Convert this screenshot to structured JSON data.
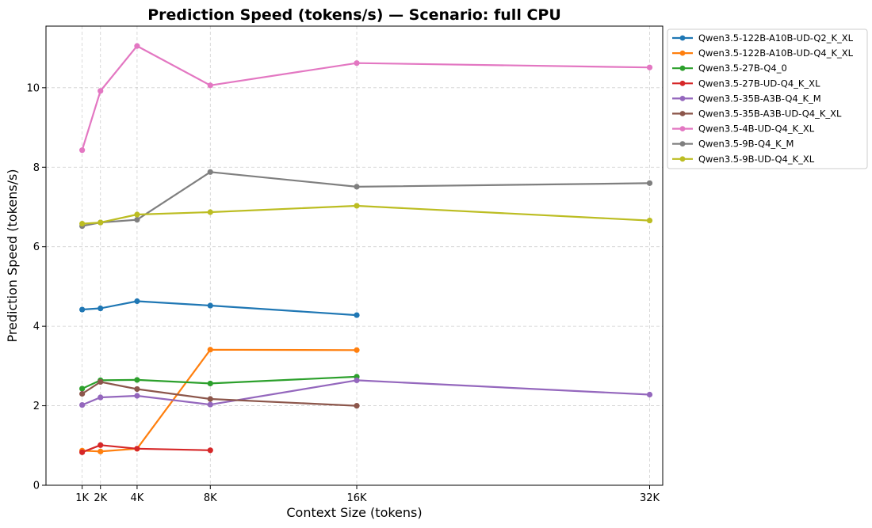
{
  "chart_data": {
    "type": "line",
    "title": "Prediction Speed (tokens/s) — Scenario: full CPU",
    "xlabel": "Context Size (tokens)",
    "ylabel": "Prediction Speed (tokens/s)",
    "xlim": [
      -1000,
      33500
    ],
    "ylim": [
      0,
      11.55
    ],
    "x_ticks": [
      {
        "value": 1024,
        "label": "1K"
      },
      {
        "value": 2048,
        "label": "2K"
      },
      {
        "value": 4096,
        "label": "4K"
      },
      {
        "value": 8192,
        "label": "8K"
      },
      {
        "value": 16384,
        "label": "16K"
      },
      {
        "value": 32768,
        "label": "32K"
      }
    ],
    "y_ticks": [
      {
        "value": 0,
        "label": "0"
      },
      {
        "value": 2,
        "label": "2"
      },
      {
        "value": 4,
        "label": "4"
      },
      {
        "value": 6,
        "label": "6"
      },
      {
        "value": 8,
        "label": "8"
      },
      {
        "value": 10,
        "label": "10"
      }
    ],
    "grid": true,
    "legend_position": "outside top-right",
    "series": [
      {
        "name": "Qwen3.5-122B-A10B-UD-Q2_K_XL",
        "color": "#1f77b4",
        "x": [
          1024,
          2048,
          4096,
          8192,
          16384
        ],
        "y": [
          4.42,
          4.45,
          4.63,
          4.52,
          4.28
        ]
      },
      {
        "name": "Qwen3.5-122B-A10B-UD-Q4_K_XL",
        "color": "#ff7f0e",
        "x": [
          1024,
          2048,
          4096,
          8192,
          16384
        ],
        "y": [
          0.87,
          0.85,
          0.92,
          3.41,
          3.4
        ]
      },
      {
        "name": "Qwen3.5-27B-Q4_0",
        "color": "#2ca02c",
        "x": [
          1024,
          2048,
          4096,
          8192,
          16384
        ],
        "y": [
          2.43,
          2.64,
          2.65,
          2.56,
          2.73
        ]
      },
      {
        "name": "Qwen3.5-27B-UD-Q4_K_XL",
        "color": "#d62728",
        "x": [
          1024,
          2048,
          4096,
          8192
        ],
        "y": [
          0.83,
          1.01,
          0.92,
          0.88
        ]
      },
      {
        "name": "Qwen3.5-35B-A3B-Q4_K_M",
        "color": "#9467bd",
        "x": [
          1024,
          2048,
          4096,
          8192,
          16384,
          32768
        ],
        "y": [
          2.02,
          2.21,
          2.25,
          2.03,
          2.64,
          2.28
        ]
      },
      {
        "name": "Qwen3.5-35B-A3B-UD-Q4_K_XL",
        "color": "#8c564b",
        "x": [
          1024,
          2048,
          4096,
          8192,
          16384
        ],
        "y": [
          2.3,
          2.6,
          2.42,
          2.17,
          2.0
        ]
      },
      {
        "name": "Qwen3.5-4B-UD-Q4_K_XL",
        "color": "#e377c2",
        "x": [
          1024,
          2048,
          4096,
          8192,
          16384,
          32768
        ],
        "y": [
          8.43,
          9.92,
          11.05,
          10.06,
          10.62,
          10.51
        ]
      },
      {
        "name": "Qwen3.5-9B-Q4_K_M",
        "color": "#7f7f7f",
        "x": [
          1024,
          2048,
          4096,
          8192,
          16384,
          32768
        ],
        "y": [
          6.52,
          6.61,
          6.68,
          7.88,
          7.51,
          7.6
        ]
      },
      {
        "name": "Qwen3.5-9B-UD-Q4_K_XL",
        "color": "#bcbd22",
        "x": [
          1024,
          2048,
          4096,
          8192,
          16384,
          32768
        ],
        "y": [
          6.58,
          6.61,
          6.81,
          6.87,
          7.03,
          6.66
        ]
      }
    ]
  }
}
